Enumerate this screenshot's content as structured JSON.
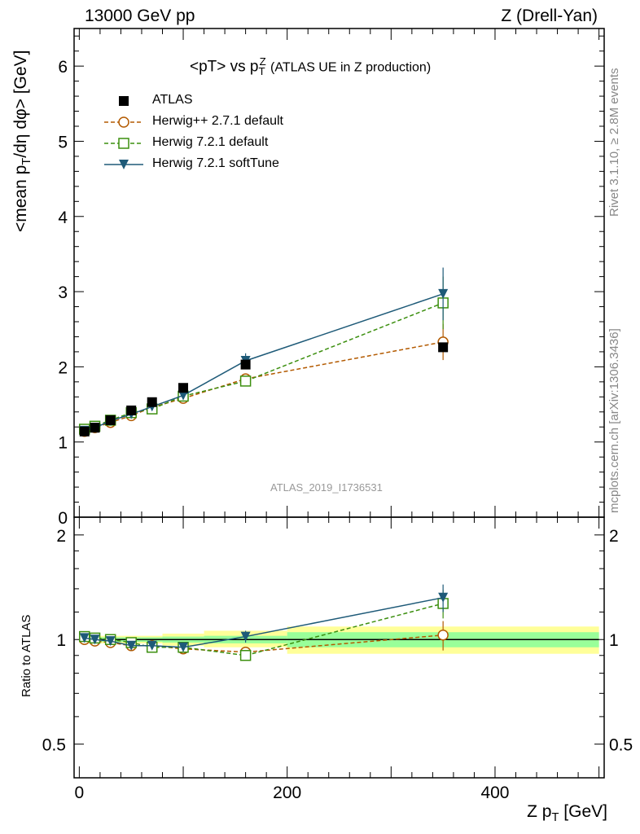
{
  "header": {
    "left": "13000 GeV pp",
    "right": "Z (Drell-Yan)"
  },
  "side_labels": {
    "rivet": "Rivet 3.1.10, ≥ 2.8M events",
    "mcplots": "mcplots.cern.ch [arXiv:1306.3436]"
  },
  "plot_title": {
    "main": "<pT> vs p",
    "sub": "T",
    "sup": "Z",
    "small": "(ATLAS UE in Z production)"
  },
  "axes": {
    "y_main_label": "<mean p",
    "y_main_label_sub": "T",
    "y_main_label_rest": "/dη dφ> [GeV]",
    "y_ratio_label": "Ratio to ATLAS",
    "x_label": "Z p",
    "x_label_sub": "T",
    "x_label_rest": " [GeV]"
  },
  "analysis_id": "ATLAS_2019_I1736531",
  "chart_data": [
    {
      "type": "scatter",
      "panel": "main",
      "xlim": [
        -5,
        505
      ],
      "ylim": [
        0,
        6.5
      ],
      "y_ticks": [
        0,
        1,
        2,
        3,
        4,
        5,
        6
      ],
      "x_ticks": [
        0,
        200,
        400
      ],
      "legend_placement": "top-left",
      "series": [
        {
          "name": "ATLAS",
          "color": "#000000",
          "marker": "square-filled",
          "line": "none",
          "x": [
            5,
            15,
            30,
            50,
            70,
            100,
            160,
            350
          ],
          "y": [
            1.14,
            1.19,
            1.29,
            1.42,
            1.53,
            1.72,
            2.03,
            2.26
          ]
        },
        {
          "name": "Herwig++ 2.7.1 default",
          "color": "#b35a00",
          "marker": "circle-open",
          "line": "dashed",
          "x": [
            5,
            15,
            30,
            50,
            70,
            100,
            160,
            350
          ],
          "y": [
            1.14,
            1.19,
            1.26,
            1.35,
            1.46,
            1.58,
            1.84,
            2.33
          ],
          "err": [
            0.02,
            0.02,
            0.02,
            0.02,
            0.03,
            0.03,
            0.06,
            0.24
          ]
        },
        {
          "name": "Herwig 7.2.1 default",
          "color": "#3c8f0f",
          "marker": "square-open",
          "line": "dashed",
          "x": [
            5,
            15,
            30,
            50,
            70,
            100,
            160,
            350
          ],
          "y": [
            1.17,
            1.21,
            1.29,
            1.39,
            1.44,
            1.61,
            1.81,
            2.85
          ],
          "err": [
            0.02,
            0.02,
            0.02,
            0.02,
            0.03,
            0.03,
            0.06,
            0.35
          ]
        },
        {
          "name": "Herwig 7.2.1 softTune",
          "color": "#1e5a78",
          "marker": "triangle-down-filled",
          "line": "solid",
          "x": [
            5,
            15,
            30,
            50,
            70,
            100,
            160,
            350
          ],
          "y": [
            1.15,
            1.19,
            1.28,
            1.37,
            1.47,
            1.62,
            2.08,
            2.97
          ],
          "err": [
            0.02,
            0.02,
            0.02,
            0.02,
            0.03,
            0.03,
            0.1,
            0.35
          ]
        }
      ]
    },
    {
      "type": "scatter",
      "panel": "ratio",
      "xlim": [
        -5,
        505
      ],
      "ylim": [
        0.4,
        2.25
      ],
      "y_ticks": [
        0.5,
        1,
        2
      ],
      "y_scale": "log",
      "reference_band": {
        "x_edges": [
          0,
          10,
          20,
          40,
          60,
          80,
          120,
          200,
          500
        ],
        "stat_sys_low": [
          0.975,
          0.975,
          0.975,
          0.975,
          0.975,
          0.96,
          0.95,
          0.91
        ],
        "stat_sys_high": [
          1.025,
          1.025,
          1.025,
          1.025,
          1.025,
          1.04,
          1.06,
          1.09
        ],
        "stat_low": [
          0.985,
          0.985,
          0.985,
          0.985,
          0.985,
          0.98,
          0.975,
          0.95
        ],
        "stat_high": [
          1.015,
          1.015,
          1.015,
          1.015,
          1.015,
          1.02,
          1.025,
          1.05
        ]
      },
      "series": [
        {
          "name": "Herwig++ 2.7.1 default",
          "color": "#b35a00",
          "x": [
            5,
            15,
            30,
            50,
            70,
            100,
            160,
            350
          ],
          "y": [
            1.0,
            0.99,
            0.98,
            0.96,
            0.96,
            0.94,
            0.92,
            1.03
          ],
          "err": [
            0.015,
            0.015,
            0.015,
            0.015,
            0.02,
            0.02,
            0.03,
            0.1
          ]
        },
        {
          "name": "Herwig 7.2.1 default",
          "color": "#3c8f0f",
          "x": [
            5,
            15,
            30,
            50,
            70,
            100,
            160,
            350
          ],
          "y": [
            1.02,
            1.01,
            1.0,
            0.98,
            0.95,
            0.95,
            0.9,
            1.27
          ],
          "err": [
            0.015,
            0.015,
            0.015,
            0.015,
            0.02,
            0.02,
            0.03,
            0.12
          ]
        },
        {
          "name": "Herwig 7.2.1 softTune",
          "color": "#1e5a78",
          "x": [
            5,
            15,
            30,
            50,
            70,
            100,
            160,
            350
          ],
          "y": [
            1.01,
            1.0,
            0.99,
            0.96,
            0.96,
            0.95,
            1.02,
            1.32
          ],
          "err": [
            0.015,
            0.015,
            0.015,
            0.015,
            0.02,
            0.02,
            0.04,
            0.12
          ]
        }
      ]
    }
  ]
}
